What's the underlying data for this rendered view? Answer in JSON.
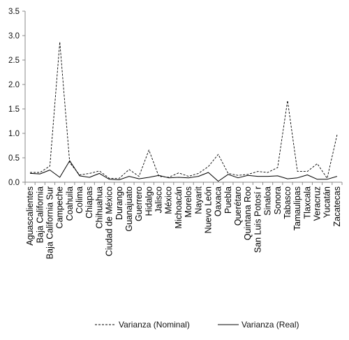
{
  "chart_data": {
    "type": "line",
    "title": "",
    "xlabel": "",
    "ylabel": "",
    "ylim": [
      0,
      3.5
    ],
    "yticks": [
      "0.0",
      "0.5",
      "1.0",
      "1.5",
      "2.0",
      "2.5",
      "3.0",
      "3.5"
    ],
    "grid": false,
    "legend_position": "bottom",
    "categories": [
      "Aguascalientes",
      "Baja California",
      "Baja California Sur",
      "Campeche",
      "Coahuila",
      "Colima",
      "Chiapas",
      "Chihuahua",
      "Ciudad de México",
      "Durango",
      "Guanajuato",
      "Guerrero",
      "Hidalgo",
      "Jalisco",
      "México",
      "Michoacán",
      "Morelos",
      "Nayarit",
      "Nuevo León",
      "Oaxaca",
      "Puebla",
      "Querétaro",
      "Quintana Roo",
      "San Luis Potosí r",
      "Sinaloa",
      "Sonora",
      "Tabasco",
      "Tamaulipas",
      "Tlaxcala",
      "Veracruz",
      "Yucatán",
      "Zacatecas"
    ],
    "series": [
      {
        "name": "Varianza (Nominal)",
        "style": "dashed",
        "color": "#000000",
        "values": [
          0.2,
          0.2,
          0.33,
          2.87,
          0.4,
          0.15,
          0.18,
          0.23,
          0.08,
          0.08,
          0.26,
          0.12,
          0.66,
          0.12,
          0.1,
          0.19,
          0.12,
          0.18,
          0.32,
          0.57,
          0.18,
          0.14,
          0.16,
          0.22,
          0.2,
          0.3,
          1.67,
          0.22,
          0.22,
          0.38,
          0.08,
          0.97
        ]
      },
      {
        "name": "Varianza (Real)",
        "style": "solid",
        "color": "#000000",
        "values": [
          0.18,
          0.17,
          0.25,
          0.1,
          0.44,
          0.13,
          0.1,
          0.18,
          0.06,
          0.05,
          0.12,
          0.07,
          0.1,
          0.14,
          0.09,
          0.1,
          0.09,
          0.12,
          0.2,
          0.02,
          0.16,
          0.09,
          0.14,
          0.12,
          0.12,
          0.13,
          0.07,
          0.09,
          0.15,
          0.06,
          0.06,
          0.12
        ]
      }
    ]
  }
}
